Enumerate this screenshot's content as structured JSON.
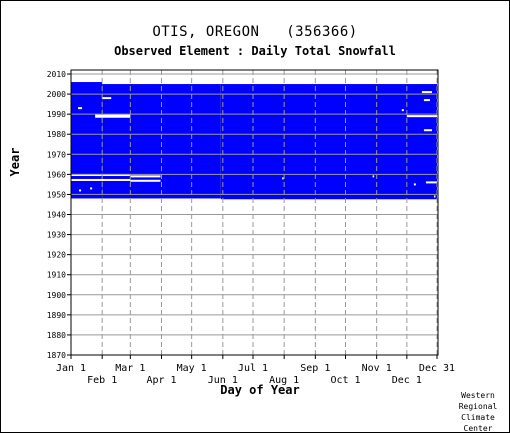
{
  "page": {
    "title": "OTIS, OREGON   (356366)",
    "subtitle": "Observed Element : Daily Total Snowfall",
    "xlabel": "Day of Year",
    "ylabel": "Year",
    "credit": "Western\nRegional\nClimate\nCenter"
  },
  "chart_data": {
    "type": "heatmap",
    "title": "OTIS, OREGON   (356366)",
    "subtitle": "Observed Element : Daily Total Snowfall",
    "xlabel": "Day of Year",
    "ylabel": "Year",
    "x_unit": "day of year",
    "xlim": [
      1,
      366
    ],
    "ylim": [
      1870,
      2012
    ],
    "grid": true,
    "colors": {
      "data": "#0000ff",
      "missing": "#ffffff",
      "grid": "#999999"
    },
    "x_ticks_row1": [
      {
        "label": "Jan 1",
        "day": 1
      },
      {
        "label": "Mar 1",
        "day": 60
      },
      {
        "label": "May 1",
        "day": 121
      },
      {
        "label": "Jul 1",
        "day": 182
      },
      {
        "label": "Sep 1",
        "day": 244
      },
      {
        "label": "Nov 1",
        "day": 305
      },
      {
        "label": "Dec 31",
        "day": 365
      }
    ],
    "x_ticks_row2": [
      {
        "label": "Feb 1",
        "day": 32
      },
      {
        "label": "Apr 1",
        "day": 91
      },
      {
        "label": "Jun 1",
        "day": 152
      },
      {
        "label": "Aug 1",
        "day": 213
      },
      {
        "label": "Oct 1",
        "day": 274
      },
      {
        "label": "Dec 1",
        "day": 335
      }
    ],
    "y_ticks": [
      1870,
      1880,
      1890,
      1900,
      1910,
      1920,
      1930,
      1940,
      1950,
      1960,
      1970,
      1980,
      1990,
      2000,
      2010
    ],
    "record": {
      "start_year": 1948,
      "end_year": 2005.5,
      "start_year_by_segment": [
        {
          "from_day": 1,
          "to_day": 150,
          "start_year": 1948
        },
        {
          "from_day": 150,
          "to_day": 365,
          "start_year": 1947.6
        }
      ],
      "end_year_by_segment": [
        {
          "from_day": 1,
          "to_day": 32,
          "end_year": 2006
        },
        {
          "from_day": 32,
          "to_day": 365,
          "end_year": 2005
        }
      ]
    },
    "missing_segments": [
      {
        "year": 1998,
        "from_day": 32,
        "to_day": 41
      },
      {
        "year": 1993,
        "from_day": 8,
        "to_day": 12
      },
      {
        "year": 1988.7,
        "from_day": 25,
        "to_day": 60
      },
      {
        "year": 1989.3,
        "from_day": 25,
        "to_day": 60
      },
      {
        "year": 1959.7,
        "from_day": 1,
        "to_day": 60
      },
      {
        "year": 1959.0,
        "from_day": 60,
        "to_day": 90
      },
      {
        "year": 1957.2,
        "from_day": 1,
        "to_day": 60
      },
      {
        "year": 1956.8,
        "from_day": 60,
        "to_day": 90
      },
      {
        "year": 1952,
        "from_day": 9,
        "to_day": 11
      },
      {
        "year": 1953,
        "from_day": 20,
        "to_day": 22
      },
      {
        "year": 2001,
        "from_day": 350,
        "to_day": 360
      },
      {
        "year": 1997,
        "from_day": 352,
        "to_day": 358
      },
      {
        "year": 1992,
        "from_day": 330,
        "to_day": 332
      },
      {
        "year": 1989,
        "from_day": 335,
        "to_day": 365
      },
      {
        "year": 1982,
        "from_day": 352,
        "to_day": 360
      },
      {
        "year": 1956,
        "from_day": 354,
        "to_day": 365
      },
      {
        "year": 1955,
        "from_day": 342,
        "to_day": 344
      },
      {
        "year": 1958,
        "from_day": 211,
        "to_day": 212
      },
      {
        "year": 1959,
        "from_day": 301,
        "to_day": 302
      },
      {
        "year": 1949,
        "from_day": 362,
        "to_day": 363
      }
    ]
  }
}
